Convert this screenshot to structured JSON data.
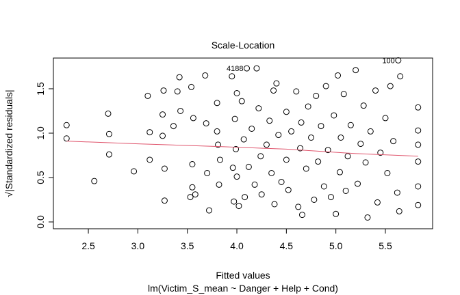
{
  "chart_data": {
    "type": "scatter",
    "title": "Scale-Location",
    "xlabel": "Fitted values",
    "subtitle": "lm(Victim_S_mean ~ Danger + Help + Cond)",
    "ylabel": "√|Standardized residuals|",
    "xlim": [
      2.147,
      5.977
    ],
    "ylim": [
      -0.077,
      1.846
    ],
    "xticks": [
      2.5,
      {
        "value": 3,
        "label": "3.0"
      },
      3.5,
      {
        "value": 4,
        "label": "4.0"
      },
      4.5,
      {
        "value": 5,
        "label": "5.0"
      },
      5.5
    ],
    "yticks": [
      {
        "value": 0,
        "label": "0.0"
      },
      0.5,
      {
        "value": 1,
        "label": "1.0"
      },
      1.5
    ],
    "series": [
      {
        "color": "#000000",
        "x": [
          2.28,
          2.28,
          2.56,
          2.7,
          2.71,
          2.71,
          2.96,
          3.1,
          3.12,
          3.12,
          3.25,
          3.25,
          3.26,
          3.27,
          3.27,
          3.36,
          3.4,
          3.42,
          3.43,
          3.53,
          3.54,
          3.55,
          3.55,
          3.56,
          3.58,
          3.68,
          3.69,
          3.7,
          3.72,
          3.8,
          3.81,
          3.82,
          3.83,
          3.8,
          3.95,
          3.96,
          3.97,
          3.98,
          3.99,
          4.0,
          4.0,
          4.02,
          4.05,
          4.07,
          4.08,
          4.1,
          4.12,
          4.15,
          4.18,
          4.2,
          4.22,
          4.24,
          4.25,
          4.3,
          4.33,
          4.35,
          4.37,
          4.38,
          4.4,
          4.42,
          4.45,
          4.5,
          4.5,
          4.52,
          4.55,
          4.6,
          4.62,
          4.64,
          4.65,
          4.66,
          4.7,
          4.72,
          4.75,
          4.78,
          4.8,
          4.82,
          4.85,
          4.88,
          4.9,
          4.92,
          4.95,
          4.98,
          5.0,
          5.02,
          5.04,
          5.05,
          5.08,
          5.1,
          5.12,
          5.15,
          5.2,
          5.22,
          5.25,
          5.28,
          5.3,
          5.32,
          5.35,
          5.4,
          5.42,
          5.45,
          5.5,
          5.52,
          5.55,
          5.58,
          5.62,
          5.63,
          5.64,
          5.65,
          5.83,
          5.83,
          5.83,
          5.83,
          5.83,
          5.83
        ],
        "values": [
          1.09,
          0.94,
          0.46,
          1.22,
          0.99,
          0.76,
          0.57,
          1.42,
          1.01,
          0.7,
          1.21,
          0.97,
          1.48,
          0.6,
          0.24,
          1.08,
          1.47,
          1.63,
          1.25,
          0.28,
          1.52,
          0.65,
          0.39,
          1.17,
          0.31,
          1.65,
          1.11,
          0.55,
          0.13,
          1.34,
          0.87,
          0.42,
          0.7,
          1.02,
          1.64,
          0.61,
          0.23,
          1.16,
          0.82,
          1.45,
          0.51,
          0.18,
          1.36,
          0.93,
          0.28,
          1.73,
          0.62,
          1.05,
          0.42,
          1.73,
          1.28,
          0.74,
          0.31,
          0.87,
          1.14,
          0.55,
          1.48,
          0.2,
          1.56,
          0.98,
          0.45,
          1.24,
          0.7,
          0.36,
          1.02,
          1.47,
          0.17,
          0.83,
          1.12,
          0.08,
          0.6,
          1.3,
          0.95,
          0.25,
          1.42,
          0.68,
          1.08,
          0.4,
          1.53,
          0.81,
          0.28,
          1.2,
          0.09,
          1.65,
          0.56,
          0.95,
          1.44,
          0.35,
          0.74,
          1.09,
          1.71,
          0.43,
          0.88,
          1.31,
          0.67,
          0.05,
          1.02,
          1.48,
          0.22,
          0.78,
          1.17,
          0.55,
          1.53,
          0.91,
          0.33,
          1.82,
          0.12,
          1.64,
          1.29,
          1.03,
          0.87,
          0.68,
          0.4,
          0.19
        ]
      },
      {
        "type": "line",
        "color": "#df536b",
        "x": [
          2.28,
          3.0,
          3.8,
          4.5,
          5.2,
          5.83
        ],
        "values": [
          0.91,
          0.88,
          0.85,
          0.82,
          0.77,
          0.74
        ]
      }
    ],
    "annotations": [
      {
        "text": "100",
        "x": 5.63,
        "y": 1.82
      },
      {
        "text": "4188",
        "x": 4.1,
        "y": 1.73
      }
    ]
  }
}
